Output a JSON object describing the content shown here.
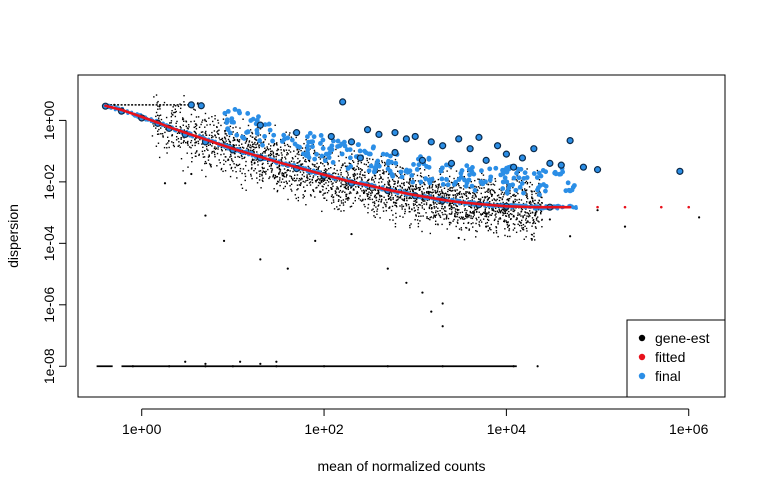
{
  "chart_data": {
    "type": "scatter",
    "title": "",
    "xlabel": "mean of normalized counts",
    "ylabel": "dispersion",
    "x_scale": "log10",
    "y_scale": "log10",
    "xlim": [
      0.2,
      2500000
    ],
    "ylim": [
      1e-09,
      30
    ],
    "x_ticks": [
      {
        "value": 1,
        "label": "1e+00"
      },
      {
        "value": 100,
        "label": "1e+02"
      },
      {
        "value": 10000,
        "label": "1e+04"
      },
      {
        "value": 1000000,
        "label": "1e+06"
      }
    ],
    "y_ticks": [
      {
        "value": 1,
        "label": "1e+00"
      },
      {
        "value": 0.01,
        "label": "1e-02"
      },
      {
        "value": 0.0001,
        "label": "1e-04"
      },
      {
        "value": 1e-06,
        "label": "1e-06"
      },
      {
        "value": 1e-08,
        "label": "1e-08"
      }
    ],
    "grid": false,
    "legend_position": "bottom-right",
    "series": [
      {
        "name": "gene-est",
        "color": "#000000",
        "marker": "dot",
        "points": [
          [
            0.5,
            3.2
          ],
          [
            0.7,
            2.1
          ],
          [
            1.0,
            1.4
          ],
          [
            1.5,
            0.9
          ],
          [
            2.0,
            0.6
          ],
          [
            3.0,
            0.35
          ],
          [
            4.0,
            0.28
          ],
          [
            5.0,
            0.2
          ],
          [
            7.0,
            0.15
          ],
          [
            10,
            0.1
          ],
          [
            15,
            0.075
          ],
          [
            20,
            0.06
          ],
          [
            30,
            0.04
          ],
          [
            50,
            0.03
          ],
          [
            70,
            0.024
          ],
          [
            100,
            0.018
          ],
          [
            150,
            0.012
          ],
          [
            200,
            0.01
          ],
          [
            300,
            0.008
          ],
          [
            500,
            0.006
          ],
          [
            700,
            0.005
          ],
          [
            1000,
            0.004
          ],
          [
            1500,
            0.0035
          ],
          [
            2000,
            0.003
          ],
          [
            3000,
            0.0025
          ],
          [
            5000,
            0.0021
          ],
          [
            8000,
            0.0019
          ],
          [
            12000,
            0.0017
          ],
          [
            20000,
            0.0016
          ],
          [
            3,
            0.009
          ],
          [
            5,
            0.0008
          ],
          [
            8,
            0.00012
          ],
          [
            20,
            3e-05
          ],
          [
            40,
            1.5e-05
          ],
          [
            80,
            0.00012
          ],
          [
            200,
            0.0002
          ],
          [
            500,
            1.5e-05
          ],
          [
            800,
            5.2e-06
          ],
          [
            1200,
            2.5e-06
          ],
          [
            1500,
            6e-07
          ],
          [
            2000,
            2e-07
          ],
          [
            2000,
            1.1e-06
          ],
          [
            3000,
            0.00015
          ],
          [
            6000,
            0.00035
          ],
          [
            30000,
            0.0006
          ],
          [
            50000,
            0.00017
          ],
          [
            100000,
            0.0012
          ],
          [
            200000,
            0.00035
          ],
          [
            1300000,
            0.0007
          ],
          [
            1.8,
            0.009
          ],
          [
            3.5,
            0.018
          ],
          [
            0.8,
            1e-08
          ],
          [
            2,
            1e-08
          ],
          [
            5,
            1e-08
          ],
          [
            10,
            1e-08
          ],
          [
            30,
            1e-08
          ],
          [
            100,
            1e-08
          ],
          [
            500,
            1e-08
          ],
          [
            2000,
            1e-08
          ],
          [
            12000,
            1e-08
          ],
          [
            22000,
            1e-08
          ],
          [
            3.0,
            1.4e-08
          ],
          [
            5.0,
            1.2e-08
          ],
          [
            12,
            1.4e-08
          ],
          [
            20,
            1.2e-08
          ],
          [
            30,
            1.4e-08
          ]
        ]
      },
      {
        "name": "fitted",
        "color": "#e8111b",
        "marker": "dot",
        "points": [
          [
            0.4,
            3.0
          ],
          [
            0.6,
            2.2
          ],
          [
            1.0,
            1.3
          ],
          [
            1.5,
            0.85
          ],
          [
            2.0,
            0.6
          ],
          [
            3.0,
            0.4
          ],
          [
            5.0,
            0.24
          ],
          [
            7.0,
            0.17
          ],
          [
            10,
            0.12
          ],
          [
            20,
            0.065
          ],
          [
            30,
            0.045
          ],
          [
            50,
            0.03
          ],
          [
            100,
            0.017
          ],
          [
            200,
            0.01
          ],
          [
            300,
            0.0078
          ],
          [
            500,
            0.0055
          ],
          [
            1000,
            0.0037
          ],
          [
            2000,
            0.0026
          ],
          [
            3000,
            0.0022
          ],
          [
            5000,
            0.0019
          ],
          [
            10000,
            0.0016
          ],
          [
            20000,
            0.0015
          ],
          [
            50000,
            0.0015
          ],
          [
            100000,
            0.0015
          ],
          [
            200000,
            0.0015
          ],
          [
            500000,
            0.0015
          ],
          [
            1000000,
            0.0015
          ]
        ]
      },
      {
        "name": "final",
        "color": "#2b8ee6",
        "marker": "circle",
        "points": [
          [
            0.4,
            2.9
          ],
          [
            0.6,
            2.0
          ],
          [
            1.0,
            1.2
          ],
          [
            1.5,
            0.8
          ],
          [
            2.0,
            0.55
          ],
          [
            3.0,
            0.35
          ],
          [
            5.0,
            0.2
          ],
          [
            10,
            0.11
          ],
          [
            20,
            0.06
          ],
          [
            50,
            0.027
          ],
          [
            100,
            0.016
          ],
          [
            200,
            0.009
          ],
          [
            500,
            0.0052
          ],
          [
            1000,
            0.0035
          ],
          [
            2000,
            0.0025
          ],
          [
            5000,
            0.0018
          ],
          [
            10000,
            0.0016
          ],
          [
            30000,
            0.0015
          ],
          [
            3.5,
            3.2
          ],
          [
            4.5,
            3.0
          ],
          [
            20,
            0.7
          ],
          [
            50,
            0.4
          ],
          [
            120,
            0.3
          ],
          [
            160,
            4.0
          ],
          [
            200,
            0.2
          ],
          [
            300,
            0.5
          ],
          [
            400,
            0.35
          ],
          [
            600,
            0.4
          ],
          [
            800,
            0.25
          ],
          [
            1000,
            0.3
          ],
          [
            1500,
            0.2
          ],
          [
            2000,
            0.15
          ],
          [
            3000,
            0.25
          ],
          [
            4000,
            0.12
          ],
          [
            5000,
            0.28
          ],
          [
            8000,
            0.15
          ],
          [
            10000,
            0.08
          ],
          [
            15000,
            0.06
          ],
          [
            20000,
            0.12
          ],
          [
            30000,
            0.04
          ],
          [
            40000,
            0.035
          ],
          [
            50000,
            0.22
          ],
          [
            70000,
            0.03
          ],
          [
            100000,
            0.025
          ],
          [
            800000,
            0.022
          ],
          [
            250,
            0.06
          ],
          [
            600,
            0.09
          ],
          [
            1200,
            0.05
          ],
          [
            2500,
            0.04
          ],
          [
            6000,
            0.05
          ],
          [
            12000,
            0.03
          ]
        ]
      }
    ]
  }
}
